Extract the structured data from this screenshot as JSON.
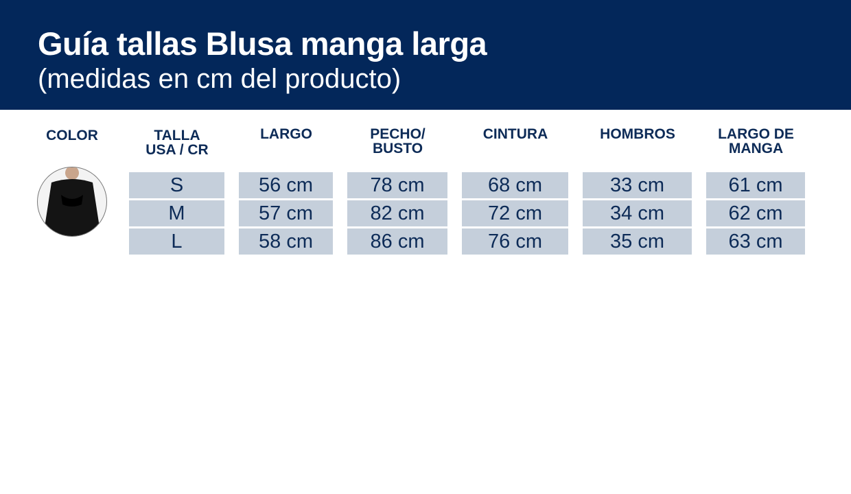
{
  "header": {
    "title": "Guía tallas Blusa manga larga",
    "subtitle": "(medidas en cm del producto)"
  },
  "columns": [
    "COLOR",
    "TALLA\nUSA / CR",
    "LARGO",
    "PECHO/\nBUSTO",
    "CINTURA",
    "HOMBROS",
    "LARGO DE\nMANGA"
  ],
  "rows": [
    [
      "S",
      "56 cm",
      "78 cm",
      "68 cm",
      "33 cm",
      "61 cm"
    ],
    [
      "M",
      "57 cm",
      "82 cm",
      "72 cm",
      "34 cm",
      "62 cm"
    ],
    [
      "L",
      "58 cm",
      "86 cm",
      "76 cm",
      "35 cm",
      "63 cm"
    ]
  ],
  "colors": {
    "header_bg": "#03275a",
    "cell_bg": "#c5cfdb",
    "text": "#0d2b57"
  }
}
